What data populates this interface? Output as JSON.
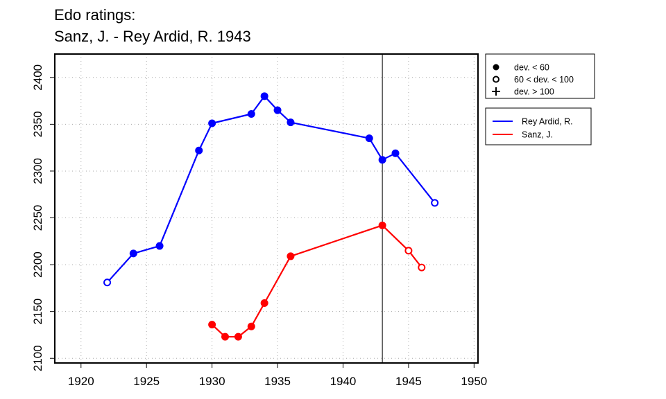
{
  "chart_data": {
    "type": "line",
    "title": "Edo ratings:",
    "subtitle": "Sanz, J. - Rey Ardid, R. 1943",
    "xlabel": "",
    "ylabel": "",
    "xlim": [
      1918,
      1950.3
    ],
    "ylim": [
      2095,
      2425
    ],
    "x_ticks": [
      1920,
      1925,
      1930,
      1935,
      1940,
      1945,
      1950
    ],
    "y_ticks": [
      2100,
      2150,
      2200,
      2250,
      2300,
      2350,
      2400
    ],
    "grid": true,
    "reference_line_x": 1943,
    "marker_legend": {
      "placement": "top-right",
      "entries": [
        {
          "symbol": "filled-circle",
          "label": "dev. < 60"
        },
        {
          "symbol": "open-circle",
          "label": "60 < dev. < 100"
        },
        {
          "symbol": "plus",
          "label": "dev. > 100"
        }
      ]
    },
    "series_legend": {
      "placement": "right"
    },
    "series": [
      {
        "name": "Rey Ardid, R.",
        "color": "#0000ff",
        "points": [
          {
            "x": 1922,
            "y": 2181,
            "marker": "open"
          },
          {
            "x": 1924,
            "y": 2212,
            "marker": "filled"
          },
          {
            "x": 1926,
            "y": 2220,
            "marker": "filled"
          },
          {
            "x": 1929,
            "y": 2322,
            "marker": "filled"
          },
          {
            "x": 1930,
            "y": 2351,
            "marker": "filled"
          },
          {
            "x": 1933,
            "y": 2361,
            "marker": "filled"
          },
          {
            "x": 1934,
            "y": 2380,
            "marker": "filled"
          },
          {
            "x": 1935,
            "y": 2365,
            "marker": "filled"
          },
          {
            "x": 1936,
            "y": 2352,
            "marker": "filled"
          },
          {
            "x": 1942,
            "y": 2335,
            "marker": "filled"
          },
          {
            "x": 1943,
            "y": 2312,
            "marker": "filled"
          },
          {
            "x": 1944,
            "y": 2319,
            "marker": "filled"
          },
          {
            "x": 1947,
            "y": 2266,
            "marker": "open"
          }
        ]
      },
      {
        "name": "Sanz, J.",
        "color": "#ff0000",
        "points": [
          {
            "x": 1930,
            "y": 2136,
            "marker": "filled"
          },
          {
            "x": 1931,
            "y": 2123,
            "marker": "filled"
          },
          {
            "x": 1932,
            "y": 2123,
            "marker": "filled"
          },
          {
            "x": 1933,
            "y": 2134,
            "marker": "filled"
          },
          {
            "x": 1934,
            "y": 2159,
            "marker": "filled"
          },
          {
            "x": 1936,
            "y": 2209,
            "marker": "filled"
          },
          {
            "x": 1943,
            "y": 2242,
            "marker": "filled"
          },
          {
            "x": 1945,
            "y": 2215,
            "marker": "open"
          },
          {
            "x": 1946,
            "y": 2197,
            "marker": "open"
          }
        ]
      }
    ]
  }
}
